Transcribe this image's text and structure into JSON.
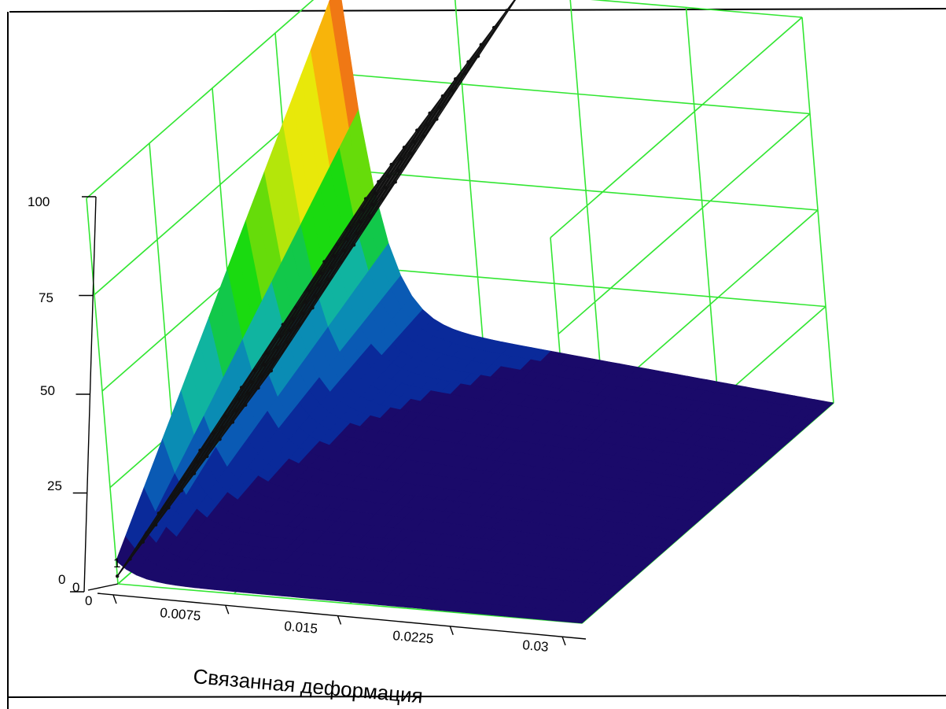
{
  "chart_data": {
    "type": "surface3d",
    "title": "",
    "xlabel": "Связанная деформация",
    "ylabel": "",
    "zlabel": "",
    "x_ticks": [
      "0",
      "0.0075",
      "0.015",
      "0.0225",
      "0.03"
    ],
    "y_ticks": [
      "0"
    ],
    "z_ticks": [
      "0",
      "25",
      "50",
      "75",
      "100"
    ],
    "extra_label": "1",
    "xlim": [
      0,
      0.03
    ],
    "zlim": [
      0,
      100
    ],
    "grid": true,
    "colors": {
      "grid": "#33e633",
      "mesh": "#111111",
      "frame": "#000000",
      "colormap": [
        "#1a0a6a",
        "#0a2a9a",
        "#0a5ab4",
        "#0a8cb4",
        "#10b4a0",
        "#12c84a",
        "#1ada10",
        "#66dc0a",
        "#b4e60a",
        "#e8e80a",
        "#f8b40a",
        "#f07814",
        "#ee3c14",
        "#e61e14"
      ]
    },
    "series": [
      {
        "kind": "colored-surface",
        "shape": "rises steeply toward zero deformation and decays with deformation",
        "z_max": 100
      },
      {
        "kind": "wireframe-plane",
        "shape": "flat plane rising linearly from origin to top corner",
        "z_max": 100
      }
    ]
  }
}
